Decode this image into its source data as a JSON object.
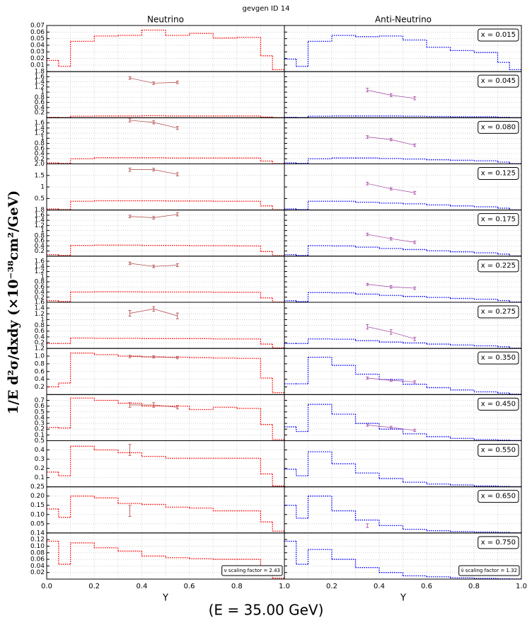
{
  "title": "gevgen ID 14",
  "y_label": "1/E  d²σ/dxdy  (×10⁻³⁸cm²/GeV)",
  "energy_label": "(E = 35.00 GeV)",
  "x_axis": {
    "label": "Y",
    "xlim": [
      0,
      1
    ],
    "xticks": [
      {
        "value": 0,
        "label": "0.0"
      },
      0.2,
      0.4,
      0.6,
      0.8,
      {
        "value": 1,
        "label": "1.0"
      }
    ],
    "x_minor_ticks": [
      0.1,
      0.3,
      0.5,
      0.7,
      0.9
    ]
  },
  "bins": [
    0,
    0.05,
    0.1,
    0.2,
    0.3,
    0.4,
    0.5,
    0.6,
    0.7,
    0.8,
    0.9,
    0.95,
    1.0
  ],
  "columns": [
    {
      "title": "Neutrino",
      "hist_color": "#ff0000",
      "point_color": "#b04040",
      "scaling_label": "ν scaling factor = 2.43"
    },
    {
      "title": "Anti-Neutrino",
      "hist_color": "#0000ff",
      "point_color": "#a040a0",
      "scaling_label": "ν̄ scaling factor = 1.32"
    }
  ],
  "chart_data": [
    {
      "type": "histogram",
      "annotation": "x = 0.015",
      "ylim": [
        0,
        0.07
      ],
      "yticks": [
        0.01,
        0.02,
        0.03,
        0.04,
        0.05,
        0.06,
        0.07
      ],
      "series": [
        {
          "values": [
            0.017,
            0.008,
            0.046,
            0.054,
            0.055,
            0.063,
            0.055,
            0.058,
            0.051,
            0.052,
            0.024,
            0.003
          ]
        },
        {
          "values": [
            0.019,
            0.008,
            0.046,
            0.055,
            0.053,
            0.054,
            0.048,
            0.037,
            0.032,
            0.029,
            0.014,
            0.003
          ]
        }
      ]
    },
    {
      "type": "histogram",
      "annotation": "x = 0.045",
      "ylim": [
        0,
        1.8
      ],
      "yticks": [
        0.2,
        0.4,
        0.6,
        0.8,
        1.0,
        1.2,
        1.4,
        1.6,
        1.8
      ],
      "series": [
        {
          "values": [
            0.02,
            0.01,
            0.06,
            0.07,
            0.07,
            0.08,
            0.07,
            0.07,
            0.07,
            0.07,
            0.03,
            0.005
          ],
          "points": {
            "x": [
              0.35,
              0.45,
              0.55
            ],
            "values": [
              1.55,
              1.35,
              1.38
            ],
            "errors": [
              0.05,
              0.05,
              0.05
            ]
          }
        },
        {
          "values": [
            0.02,
            0.01,
            0.06,
            0.07,
            0.07,
            0.07,
            0.06,
            0.05,
            0.04,
            0.04,
            0.02,
            0.005
          ],
          "points": {
            "x": [
              0.35,
              0.45,
              0.55
            ],
            "values": [
              1.08,
              0.88,
              0.76
            ],
            "errors": [
              0.07,
              0.06,
              0.06
            ]
          }
        }
      ]
    },
    {
      "type": "histogram",
      "annotation": "x = 0.080",
      "ylim": [
        0,
        1.8
      ],
      "yticks": [
        0.2,
        0.4,
        0.6,
        0.8,
        1.0,
        1.2,
        1.4,
        1.6
      ],
      "series": [
        {
          "values": [
            0.04,
            0.02,
            0.2,
            0.24,
            0.24,
            0.24,
            0.23,
            0.23,
            0.23,
            0.23,
            0.11,
            0.01
          ],
          "points": {
            "x": [
              0.35,
              0.45,
              0.55
            ],
            "values": [
              1.7,
              1.62,
              1.4
            ],
            "errors": [
              0.06,
              0.06,
              0.06
            ]
          }
        },
        {
          "values": [
            0.04,
            0.02,
            0.2,
            0.23,
            0.23,
            0.21,
            0.19,
            0.16,
            0.14,
            0.12,
            0.07,
            0.01
          ],
          "points": {
            "x": [
              0.35,
              0.45,
              0.55
            ],
            "values": [
              1.05,
              0.95,
              0.73
            ],
            "errors": [
              0.05,
              0.05,
              0.05
            ]
          }
        }
      ]
    },
    {
      "type": "histogram",
      "annotation": "x = 0.125",
      "ylim": [
        0,
        2.0
      ],
      "yticks": [
        0.5,
        1.0,
        1.5,
        {
          "value": 2.0,
          "label": "2.0"
        }
      ],
      "series": [
        {
          "values": [
            0.05,
            0.02,
            0.38,
            0.4,
            0.4,
            0.4,
            0.39,
            0.39,
            0.38,
            0.38,
            0.18,
            0.01
          ],
          "points": {
            "x": [
              0.35,
              0.45,
              0.55
            ],
            "values": [
              1.75,
              1.75,
              1.55
            ],
            "errors": [
              0.07,
              0.06,
              0.07
            ]
          }
        },
        {
          "values": [
            0.05,
            0.02,
            0.38,
            0.38,
            0.34,
            0.3,
            0.27,
            0.22,
            0.18,
            0.14,
            0.08,
            0.01
          ],
          "points": {
            "x": [
              0.35,
              0.45,
              0.55
            ],
            "values": [
              1.15,
              0.92,
              0.75
            ],
            "errors": [
              0.06,
              0.05,
              0.06
            ]
          }
        }
      ]
    },
    {
      "type": "histogram",
      "annotation": "x = 0.175",
      "ylim": [
        0,
        1.8
      ],
      "yticks": [
        0.2,
        0.4,
        0.6,
        0.8,
        1.0,
        1.2,
        1.4,
        1.6,
        1.8
      ],
      "series": [
        {
          "values": [
            0.06,
            0.03,
            0.42,
            0.43,
            0.43,
            0.42,
            0.42,
            0.41,
            0.41,
            0.4,
            0.18,
            0.02
          ],
          "points": {
            "x": [
              0.35,
              0.45,
              0.55
            ],
            "values": [
              1.55,
              1.5,
              1.63
            ],
            "errors": [
              0.05,
              0.05,
              0.06
            ]
          }
        },
        {
          "values": [
            0.06,
            0.03,
            0.41,
            0.4,
            0.35,
            0.3,
            0.26,
            0.21,
            0.17,
            0.13,
            0.08,
            0.01
          ],
          "points": {
            "x": [
              0.35,
              0.45,
              0.55
            ],
            "values": [
              0.85,
              0.68,
              0.54
            ],
            "errors": [
              0.05,
              0.05,
              0.05
            ]
          }
        }
      ]
    },
    {
      "type": "histogram",
      "annotation": "x = 0.225",
      "ylim": [
        0,
        1.8
      ],
      "yticks": [
        0.2,
        0.4,
        0.6,
        0.8,
        1.0,
        1.2,
        1.4,
        1.6
      ],
      "series": [
        {
          "values": [
            0.06,
            0.03,
            0.4,
            0.41,
            0.41,
            0.4,
            0.4,
            0.4,
            0.39,
            0.39,
            0.17,
            0.01
          ],
          "points": {
            "x": [
              0.35,
              0.45,
              0.55
            ],
            "values": [
              1.52,
              1.4,
              1.45
            ],
            "errors": [
              0.05,
              0.05,
              0.06
            ]
          }
        },
        {
          "values": [
            0.06,
            0.03,
            0.38,
            0.37,
            0.32,
            0.27,
            0.23,
            0.19,
            0.15,
            0.12,
            0.07,
            0.01
          ],
          "points": {
            "x": [
              0.35,
              0.45,
              0.55
            ],
            "values": [
              0.7,
              0.6,
              0.55
            ],
            "errors": [
              0.04,
              0.05,
              0.05
            ]
          }
        }
      ]
    },
    {
      "type": "histogram",
      "annotation": "x = 0.275",
      "ylim": [
        0,
        1.6
      ],
      "yticks": [
        0.2,
        0.4,
        0.6,
        0.8,
        1.0,
        1.2,
        1.4,
        1.6
      ],
      "series": [
        {
          "values": [
            0.17,
            0.17,
            0.36,
            0.35,
            0.35,
            0.34,
            0.34,
            0.34,
            0.33,
            0.33,
            0.15,
            0.02
          ],
          "points": {
            "x": [
              0.35,
              0.45,
              0.55
            ],
            "values": [
              1.22,
              1.37,
              1.13
            ],
            "errors": [
              0.1,
              0.08,
              0.1
            ]
          }
        },
        {
          "values": [
            0.17,
            0.17,
            0.33,
            0.32,
            0.27,
            0.22,
            0.19,
            0.15,
            0.12,
            0.09,
            0.06,
            0.01
          ],
          "points": {
            "x": [
              0.35,
              0.45,
              0.55
            ],
            "values": [
              0.75,
              0.57,
              0.33
            ],
            "errors": [
              0.08,
              0.08,
              0.06
            ]
          }
        }
      ]
    },
    {
      "type": "histogram",
      "annotation": "x = 0.350",
      "ylim": [
        0,
        1.2
      ],
      "yticks": [
        0.2,
        0.4,
        0.6,
        0.8,
        {
          "value": 1.0,
          "label": "1.0"
        },
        1.2
      ],
      "series": [
        {
          "values": [
            0.2,
            0.3,
            1.08,
            1.04,
            1.0,
            0.98,
            0.97,
            0.96,
            0.95,
            0.94,
            0.43,
            0.05
          ],
          "points": {
            "x": [
              0.35,
              0.45,
              0.55
            ],
            "values": [
              0.99,
              0.98,
              0.96
            ],
            "errors": [
              0.03,
              0.03,
              0.03
            ]
          }
        },
        {
          "values": [
            0.28,
            0.28,
            0.97,
            0.76,
            0.53,
            0.39,
            0.27,
            0.18,
            0.12,
            0.07,
            0.04,
            0.01
          ],
          "points": {
            "x": [
              0.35,
              0.45,
              0.55
            ],
            "values": [
              0.43,
              0.37,
              0.33
            ],
            "errors": [
              0.03,
              0.03,
              0.03
            ]
          }
        }
      ]
    },
    {
      "type": "histogram",
      "annotation": "x = 0.450",
      "ylim": [
        0,
        0.8
      ],
      "yticks": [
        0.1,
        0.2,
        0.3,
        0.4,
        0.5,
        0.6,
        0.7
      ],
      "series": [
        {
          "values": [
            0.23,
            0.22,
            0.74,
            0.7,
            0.65,
            0.6,
            0.6,
            0.54,
            0.58,
            0.56,
            0.28,
            0.02
          ],
          "points": {
            "x": [
              0.35,
              0.45,
              0.55
            ],
            "values": [
              0.62,
              0.62,
              0.58
            ],
            "errors": [
              0.04,
              0.04,
              0.03
            ]
          }
        },
        {
          "values": [
            0.24,
            0.16,
            0.63,
            0.46,
            0.3,
            0.2,
            0.12,
            0.07,
            0.04,
            0.02,
            0.01,
            0.005
          ],
          "points": {
            "x": [
              0.35,
              0.45,
              0.55
            ],
            "values": [
              0.27,
              0.23,
              0.18
            ],
            "errors": [
              0.02,
              0.02,
              0.02
            ]
          }
        }
      ]
    },
    {
      "type": "histogram",
      "annotation": "x = 0.550",
      "ylim": [
        0,
        0.5
      ],
      "yticks": [
        0.1,
        0.2,
        0.3,
        0.4,
        0.5
      ],
      "series": [
        {
          "values": [
            0.16,
            0.12,
            0.44,
            0.4,
            0.37,
            0.33,
            0.31,
            0.31,
            0.31,
            0.31,
            0.14,
            0.01
          ],
          "points": {
            "x": [
              0.35
            ],
            "values": [
              0.4
            ],
            "errors": [
              0.06
            ]
          }
        },
        {
          "values": [
            0.19,
            0.12,
            0.38,
            0.25,
            0.15,
            0.09,
            0.05,
            0.03,
            0.02,
            0.01,
            0.005,
            0.002
          ]
        }
      ]
    },
    {
      "type": "histogram",
      "annotation": "x = 0.650",
      "ylim": [
        0,
        0.25
      ],
      "yticks": [
        {
          "value": 0.05,
          "label": "0.05"
        },
        {
          "value": 0.1,
          "label": "0.10"
        },
        0.15,
        {
          "value": 0.2,
          "label": "0.20"
        },
        0.25
      ],
      "series": [
        {
          "values": [
            0.13,
            0.085,
            0.2,
            0.19,
            0.16,
            0.155,
            0.14,
            0.135,
            0.12,
            0.12,
            0.06,
            0.01
          ],
          "points": {
            "x": [
              0.35
            ],
            "values": [
              0.12
            ],
            "errors": [
              0.03
            ]
          }
        },
        {
          "values": [
            0.15,
            0.08,
            0.2,
            0.12,
            0.07,
            0.04,
            0.02,
            0.012,
            0.008,
            0.005,
            0.003,
            0.001
          ],
          "points": {
            "x": [
              0.35
            ],
            "values": [
              0.04
            ],
            "errors": [
              0.01
            ]
          }
        }
      ]
    },
    {
      "type": "histogram",
      "annotation": "x = 0.750",
      "ylim": [
        0,
        0.14
      ],
      "yticks": [
        0.02,
        0.04,
        0.06,
        0.08,
        {
          "value": 0.1,
          "label": "0.10"
        },
        0.12,
        0.14
      ],
      "series": [
        {
          "values": [
            0.115,
            0.045,
            0.11,
            0.095,
            0.085,
            0.07,
            0.065,
            0.062,
            0.06,
            0.06,
            0.025,
            0.003
          ]
        },
        {
          "values": [
            0.115,
            0.045,
            0.09,
            0.06,
            0.035,
            0.02,
            0.01,
            0.007,
            0.004,
            0.002,
            0.001,
            0.0005
          ]
        }
      ]
    }
  ]
}
